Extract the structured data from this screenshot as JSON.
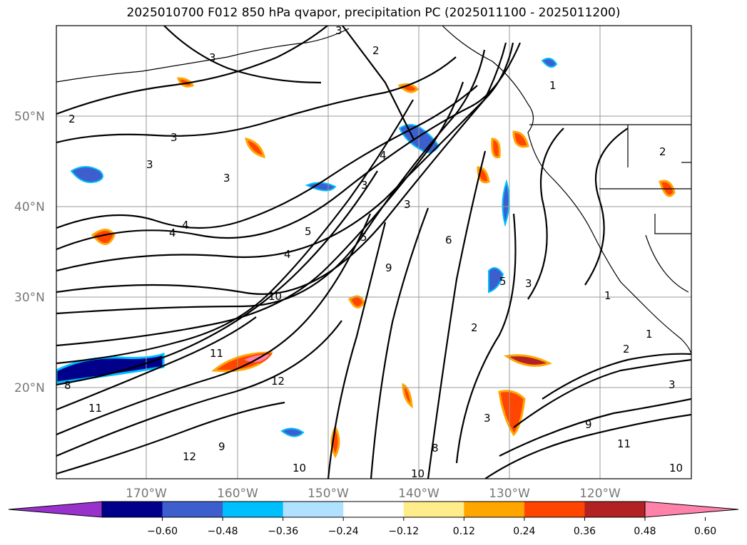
{
  "title": "2025010700 F012 850 hPa qvapor, precipitation PC (2025011100 - 2025011200)",
  "lat_labels": [
    "50°N",
    "40°N",
    "30°N",
    "20°N"
  ],
  "lon_labels": [
    "170°W",
    "160°W",
    "150°W",
    "140°W",
    "130°W",
    "120°W"
  ],
  "contour_labels": [
    "2",
    "3",
    "3",
    "3",
    "2",
    "3",
    "3",
    "3",
    "4",
    "4",
    "4",
    "3",
    "5",
    "4",
    "5",
    "6",
    "9",
    "10",
    "11",
    "12",
    "8",
    "9",
    "10",
    "11",
    "3",
    "2",
    "1",
    "5",
    "3",
    "2",
    "1",
    "1",
    "2",
    "3",
    "8",
    "9",
    "10",
    "11",
    "12",
    "10"
  ],
  "colorbar": {
    "colors": [
      "#9932cc",
      "#00008b",
      "#3c5fcd",
      "#00bfff",
      "#b0e2ff",
      "#ffffff",
      "#ffec8b",
      "#ffa500",
      "#ff4500",
      "#b22222",
      "#ff82ab"
    ],
    "extend_min_color": "#9932cc",
    "extend_max_color": "#ff82ab",
    "tick_labels": [
      "−0.60",
      "−0.48",
      "−0.36",
      "−0.24",
      "−0.12",
      "0.12",
      "0.24",
      "0.36",
      "0.48",
      "0.60"
    ]
  },
  "map_features": {
    "grid": true,
    "coastlines": true,
    "borders": true,
    "contour_color": "#000000"
  }
}
